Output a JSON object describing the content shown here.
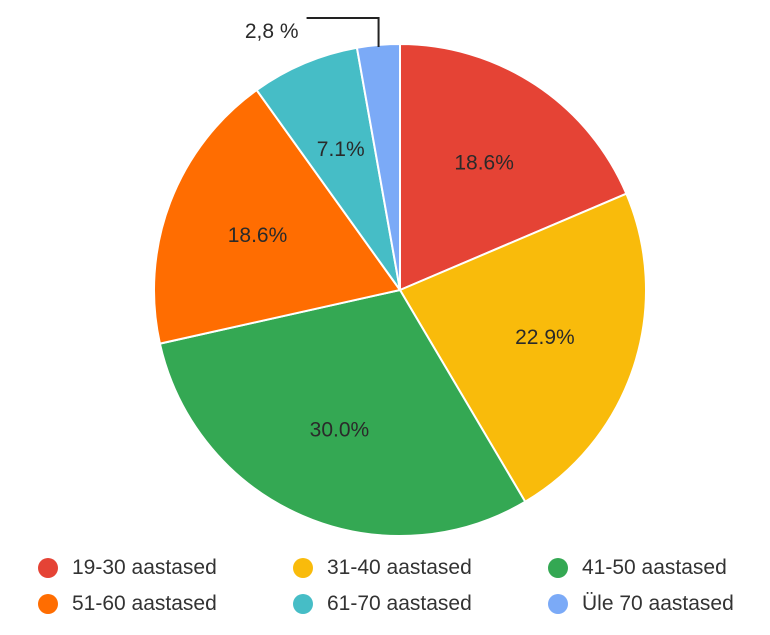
{
  "chart_data": {
    "type": "pie",
    "categories": [
      "19-30 aastased",
      "31-40 aastased",
      "41-50 aastased",
      "51-60 aastased",
      "61-70 aastased",
      "Üle 70 aastased"
    ],
    "values": [
      18.6,
      22.9,
      30.0,
      18.6,
      7.1,
      2.8
    ],
    "labels": [
      "18.6%",
      "22.9%",
      "30.0%",
      "18.6%",
      "7.1%",
      "2,8 %"
    ],
    "colors": [
      "#e54335",
      "#f9bb0b",
      "#34a853",
      "#ff6d01",
      "#46bdc6",
      "#7baaf7"
    ],
    "start_angle_deg": 0,
    "direction": "clockwise",
    "legend_position": "bottom",
    "title": ""
  }
}
